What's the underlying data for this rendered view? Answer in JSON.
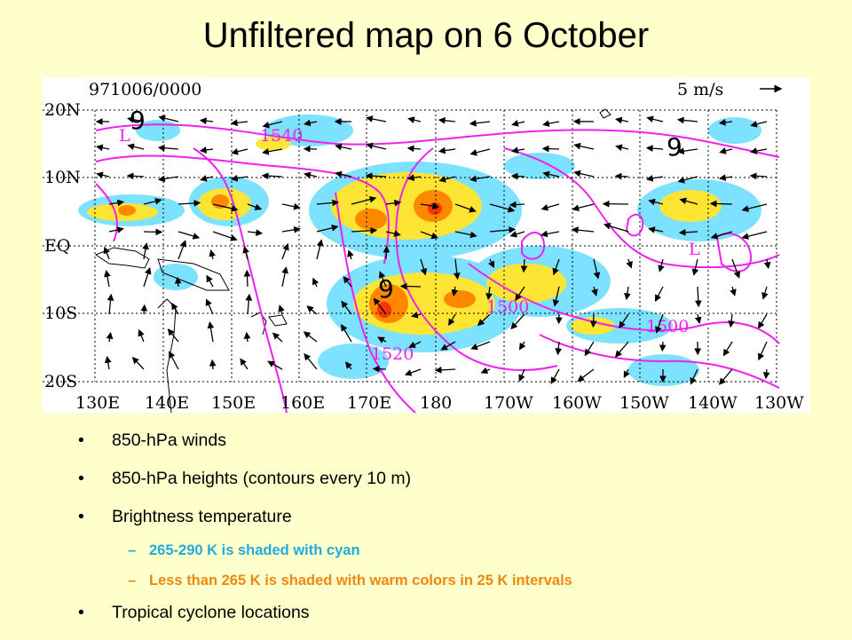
{
  "title": "Unfiltered map on 6 October",
  "map": {
    "date_label": "971006/0000",
    "scale_label": "5 m/s",
    "lat_labels": [
      "20N",
      "10N",
      "EQ",
      "10S",
      "20S"
    ],
    "lon_labels": [
      "130E",
      "140E",
      "150E",
      "160E",
      "170E",
      "180",
      "170W",
      "160W",
      "150W",
      "140W",
      "130W"
    ],
    "contour_labels": [
      "1540",
      "1500",
      "1500",
      "1520"
    ],
    "low_markers": [
      "L",
      "L"
    ],
    "cyclone_symbols": [
      "9",
      "9",
      "9"
    ],
    "colors": {
      "cyan_shade": "#66ddff",
      "warm_shade": "#ffe533",
      "hot_shade": "#ff8800",
      "contour": "#ee22ee"
    }
  },
  "bullets": [
    {
      "text": "850-hPa winds"
    },
    {
      "text": "850-hPa heights (contours every 10 m)"
    },
    {
      "text": "Brightness temperature",
      "sub": [
        "265-290 K is shaded with cyan",
        "Less than 265 K is shaded with warm colors in 25 K intervals"
      ]
    },
    {
      "text": "Tropical cyclone locations"
    }
  ]
}
